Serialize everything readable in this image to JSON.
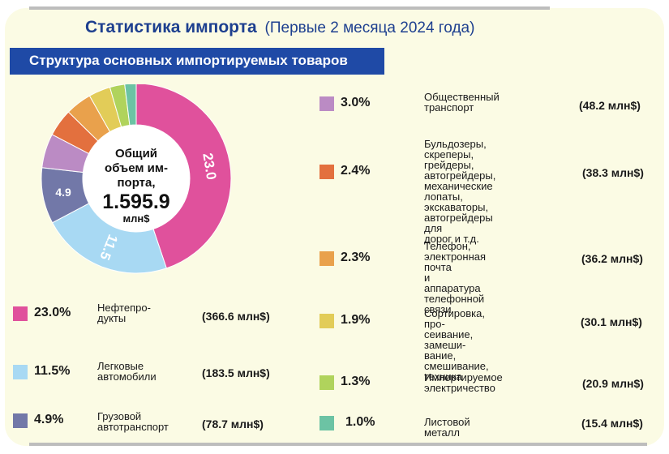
{
  "header": {
    "title": "Статистика импорта",
    "subtitle": "(Первые 2 месяца 2024 года)"
  },
  "banner": "Структура основных импортируемых товаров",
  "center": {
    "line1": "Общий",
    "line2": "объем им-",
    "line3": "порта,",
    "total": "1.595.9",
    "unit": "млн$"
  },
  "chart_data": {
    "type": "pie",
    "donut": true,
    "title": "Структура основных импортируемых товаров",
    "total_label": "1.595.9 млн$",
    "categories": [
      "Нефтепродукты",
      "Легковые автомобили",
      "Грузовой автотранспорт",
      "Общественный транспорт",
      "Бульдозеры, скреперы, грейдеры, автогрейдеры, механические лопаты, экскаваторы, автогрейдеры для дорог и т.д.",
      "Телефон, электронная почта и аппаратура телефонной связи",
      "Сортировка, просеивание, замешивание, смешивание, техника",
      "Импортируемое электричество",
      "Листовой металл"
    ],
    "values": [
      23.0,
      11.5,
      4.9,
      3.0,
      2.4,
      2.3,
      1.9,
      1.3,
      1.0
    ],
    "amounts_mln_usd": [
      366.6,
      183.5,
      78.7,
      48.2,
      38.3,
      36.2,
      30.1,
      20.9,
      15.4
    ],
    "slice_labels": [
      "23.0",
      "11.5",
      "4.9",
      "",
      "",
      "",
      "",
      "",
      ""
    ],
    "colors": [
      "#e0519c",
      "#a8d9f3",
      "#7278a8",
      "#bb8bc4",
      "#e3703e",
      "#e9a14c",
      "#e2cc58",
      "#b0d35c",
      "#6cc3a4"
    ]
  },
  "legend": [
    {
      "pct": "23.0%",
      "name_lines": [
        "Нефтепро-",
        "дукты"
      ],
      "value": "(366.6 млн$)",
      "color": "#e0519c"
    },
    {
      "pct": "11.5%",
      "name_lines": [
        "Легковые",
        "автомобили"
      ],
      "value": "(183.5 млн$)",
      "color": "#a8d9f3"
    },
    {
      "pct": "4.9%",
      "name_lines": [
        "Грузовой",
        "автотранспорт"
      ],
      "value": "(78.7 млн$)",
      "color": "#7278a8"
    },
    {
      "pct": "3.0%",
      "name_lines": [
        "Общественный",
        "транспорт"
      ],
      "value": "(48.2 млн$)",
      "color": "#bb8bc4"
    },
    {
      "pct": "2.4%",
      "name_lines": [
        "Бульдозеры,",
        "скреперы, грейдеры,",
        "автогрейдеры,",
        "механические",
        "лопаты, экскаваторы,",
        "автогрейдеры для",
        "дорог и т.д."
      ],
      "value": "(38.3 млн$)",
      "color": "#e3703e"
    },
    {
      "pct": "2.3%",
      "name_lines": [
        "Телефон,",
        "электронная почта",
        "и аппаратура",
        "телефонной связи"
      ],
      "value": "(36.2 млн$)",
      "color": "#e9a14c"
    },
    {
      "pct": "1.9%",
      "name_lines": [
        "Сортировка, про-",
        "сеивание, замеши-",
        "вание, смешивание,",
        "техника"
      ],
      "value": "(30.1 млн$)",
      "color": "#e2cc58"
    },
    {
      "pct": "1.3%",
      "name_lines": [
        "Импортируемое",
        "электричество"
      ],
      "value": "(20.9 млн$)",
      "color": "#b0d35c"
    },
    {
      "pct": "1.0%",
      "name_lines": [
        "Листовой металл"
      ],
      "value": "(15.4 млн$)",
      "color": "#6cc3a4"
    }
  ]
}
